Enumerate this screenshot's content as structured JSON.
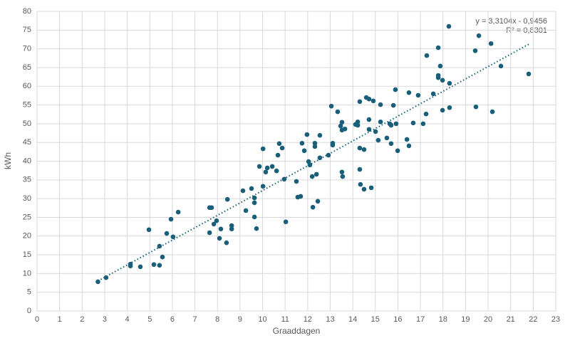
{
  "chart_data": {
    "type": "scatter",
    "x_label": "Graaddagen",
    "y_label": "kWh",
    "color": "#1a5f7a",
    "grid": true,
    "xlim": [
      0,
      23
    ],
    "xticks": [
      0,
      1,
      2,
      3,
      4,
      5,
      6,
      7,
      8,
      9,
      10,
      11,
      12,
      13,
      14,
      15,
      16,
      17,
      18,
      19,
      20,
      21,
      22,
      23
    ],
    "ylim": [
      0,
      80
    ],
    "yticks": [
      0,
      5,
      10,
      15,
      20,
      25,
      30,
      35,
      40,
      45,
      50,
      55,
      60,
      65,
      70,
      75,
      80
    ],
    "trendline": {
      "slope": 3.3104,
      "intercept": -0.9456,
      "equation": "y = 3,3104x - 0,9456",
      "r_squared": "R² = 0,8301"
    },
    "series": [
      {
        "x": [
          2.7,
          3.06,
          4.14,
          4.14,
          4.58,
          4.96,
          5.18,
          5.43,
          5.43,
          5.56,
          5.75,
          5.94,
          6.03,
          6.26,
          7.65,
          7.74,
          7.65,
          7.84,
          7.96,
          8.09,
          8.15,
          8.44,
          8.4,
          8.63,
          8.63,
          9.13,
          9.26,
          9.51,
          9.64,
          9.64,
          9.64,
          9.73,
          9.86,
          10.02,
          10.02,
          10.14,
          10.21,
          10.43,
          10.62,
          10.68,
          10.74,
          10.87,
          10.96,
          11.03,
          11.5,
          11.56,
          11.69,
          11.75,
          11.85,
          11.97,
          12.04,
          12.1,
          12.2,
          12.23,
          12.32,
          12.32,
          12.39,
          12.45,
          12.54,
          12.54,
          12.92,
          13.05,
          13.11,
          13.11,
          13.33,
          13.46,
          13.52,
          13.52,
          13.52,
          13.55,
          13.65,
          14.12,
          14.22,
          14.22,
          14.31,
          14.31,
          14.31,
          14.34,
          14.5,
          14.5,
          14.6,
          14.72,
          14.72,
          14.72,
          14.82,
          14.91,
          15.01,
          15.13,
          15.23,
          15.23,
          15.51,
          15.64,
          15.7,
          15.7,
          15.8,
          15.89,
          15.92,
          15.99,
          16.4,
          16.49,
          16.49,
          16.68,
          16.9,
          17.12,
          17.25,
          17.28,
          17.57,
          17.79,
          17.79,
          17.79,
          17.88,
          17.98,
          17.98,
          18.26,
          18.29,
          18.29,
          19.43,
          19.46,
          19.59,
          20.13,
          20.19,
          20.57,
          21.8
        ],
        "values": [
          7.8,
          8.9,
          12.5,
          12.0,
          11.8,
          21.7,
          12.4,
          17.3,
          12.2,
          14.4,
          20.7,
          24.5,
          19.8,
          26.4,
          27.6,
          27.6,
          20.9,
          23.2,
          24.1,
          19.4,
          21.9,
          29.8,
          18.2,
          22.8,
          21.9,
          32.1,
          26.8,
          32.7,
          30.2,
          28.9,
          25.1,
          22.0,
          38.6,
          43.3,
          33.3,
          37.1,
          38.2,
          38.6,
          37.4,
          41.6,
          44.7,
          43.5,
          35.2,
          23.8,
          34.6,
          30.4,
          30.6,
          44.8,
          42.8,
          47.1,
          39.9,
          39.0,
          35.9,
          27.7,
          44.8,
          43.9,
          36.5,
          29.3,
          46.9,
          40.9,
          41.6,
          54.7,
          44.8,
          44.3,
          53.2,
          49.4,
          50.4,
          48.3,
          37.1,
          35.9,
          48.6,
          49.8,
          50.5,
          49.6,
          55.9,
          43.5,
          37.8,
          33.8,
          32.5,
          43.1,
          57.0,
          56.6,
          51.1,
          48.5,
          32.9,
          56.1,
          47.9,
          45.6,
          50.5,
          55.1,
          46.2,
          50.0,
          49.6,
          44.7,
          54.9,
          59.1,
          50.0,
          42.8,
          45.8,
          58.3,
          44.1,
          50.2,
          57.6,
          50.0,
          52.6,
          68.2,
          58.0,
          70.3,
          62.9,
          62.3,
          65.4,
          61.6,
          53.6,
          76.0,
          60.8,
          54.3,
          69.5,
          54.5,
          73.5,
          71.4,
          53.2,
          65.4,
          63.3
        ]
      }
    ]
  }
}
